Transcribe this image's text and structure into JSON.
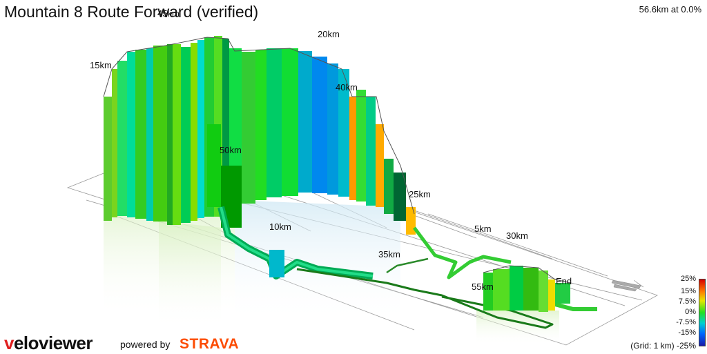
{
  "title": "Mountain 8 Route Forward (verified)",
  "readout": "56.6km at 0.0%",
  "km_labels": [
    "15km",
    "45km",
    "20km",
    "40km",
    "50km",
    "25km",
    "10km",
    "5km",
    "30km",
    "35km",
    "55km",
    "End"
  ],
  "legend": {
    "ticks": [
      "25%",
      "15%",
      "7.5%",
      "0%",
      "-7.5%",
      "-15%",
      "-25%"
    ],
    "grid_note": "(Grid: 1 km)",
    "colors": [
      "#d40000",
      "#ff7a00",
      "#e6e600",
      "#22e022",
      "#00d0d0",
      "#0066ff",
      "#1a1aa8"
    ]
  },
  "footer": {
    "brand_v": "v",
    "brand_rest": "eloviewer",
    "powered_by": "powered by",
    "strava": "STRAVA"
  },
  "icons": [
    "compass-arrow-icon"
  ]
}
